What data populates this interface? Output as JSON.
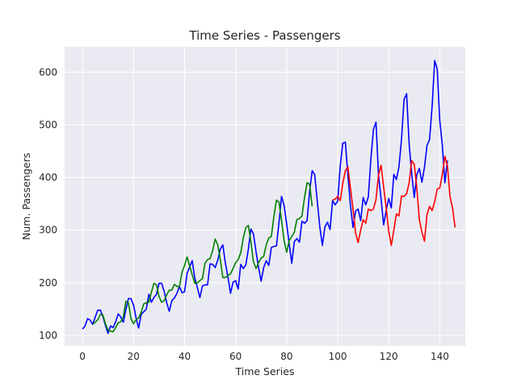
{
  "chart_data": {
    "type": "line",
    "title": "Time Series - Passengers",
    "xlabel": "Time Series",
    "ylabel": "Num. Passengers",
    "xlim": [
      -7,
      150
    ],
    "ylim": [
      80,
      648
    ],
    "xticks": [
      0,
      20,
      40,
      60,
      80,
      100,
      120,
      140
    ],
    "yticks": [
      100,
      200,
      300,
      400,
      500,
      600
    ],
    "grid": true,
    "background": "#eaeaf2",
    "series": [
      {
        "color": "#0000ff",
        "x_start": 0,
        "values": [
          112,
          118,
          132,
          129,
          121,
          135,
          148,
          148,
          136,
          119,
          104,
          118,
          115,
          126,
          141,
          135,
          125,
          149,
          170,
          170,
          158,
          133,
          114,
          140,
          145,
          150,
          178,
          163,
          172,
          178,
          199,
          199,
          184,
          162,
          146,
          166,
          171,
          180,
          193,
          181,
          183,
          218,
          230,
          242,
          209,
          191,
          172,
          194,
          196,
          196,
          236,
          235,
          229,
          243,
          264,
          272,
          237,
          211,
          180,
          201,
          204,
          188,
          235,
          227,
          234,
          264,
          302,
          293,
          259,
          229,
          203,
          229,
          242,
          233,
          267,
          269,
          270,
          315,
          364,
          347,
          312,
          274,
          237,
          278,
          284,
          277,
          317,
          313,
          318,
          374,
          413,
          405,
          355,
          306,
          271,
          306,
          315,
          301,
          356,
          348,
          355,
          422,
          465,
          467,
          404,
          347,
          305,
          336,
          340,
          318,
          362,
          348,
          363,
          435,
          491,
          505,
          404,
          359,
          310,
          337,
          360,
          342,
          406,
          396,
          420,
          472,
          548,
          559,
          463,
          407,
          362,
          405,
          417,
          391,
          419,
          461,
          472,
          535,
          622,
          606,
          508,
          461,
          390,
          432
        ]
      },
      {
        "color": "#008000",
        "x_start": 4,
        "values": [
          121,
          125,
          130,
          140,
          139,
          122,
          110,
          108,
          107,
          115,
          124,
          126,
          135,
          165,
          162,
          132,
          122,
          130,
          133,
          144,
          160,
          162,
          163,
          182,
          199,
          196,
          174,
          163,
          166,
          177,
          186,
          186,
          197,
          193,
          193,
          220,
          233,
          249,
          232,
          215,
          199,
          200,
          204,
          208,
          237,
          244,
          246,
          261,
          283,
          272,
          244,
          210,
          210,
          214,
          217,
          227,
          238,
          244,
          257,
          285,
          305,
          309,
          277,
          240,
          227,
          238,
          247,
          250,
          272,
          285,
          288,
          326,
          357,
          353,
          318,
          280,
          258,
          280,
          288,
          296,
          320,
          322,
          327,
          362,
          390,
          387,
          345
        ]
      },
      {
        "color": "#ff0000",
        "x_start": 98,
        "values": [
          357,
          359,
          364,
          356,
          389,
          413,
          420,
          380,
          340,
          295,
          276,
          300,
          320,
          313,
          340,
          337,
          340,
          358,
          405,
          423,
          382,
          342,
          298,
          271,
          300,
          331,
          327,
          365,
          364,
          369,
          390,
          432,
          425,
          380,
          320,
          296,
          279,
          330,
          345,
          337,
          354,
          378,
          380,
          406,
          440,
          422,
          364,
          342,
          305
        ]
      }
    ]
  }
}
